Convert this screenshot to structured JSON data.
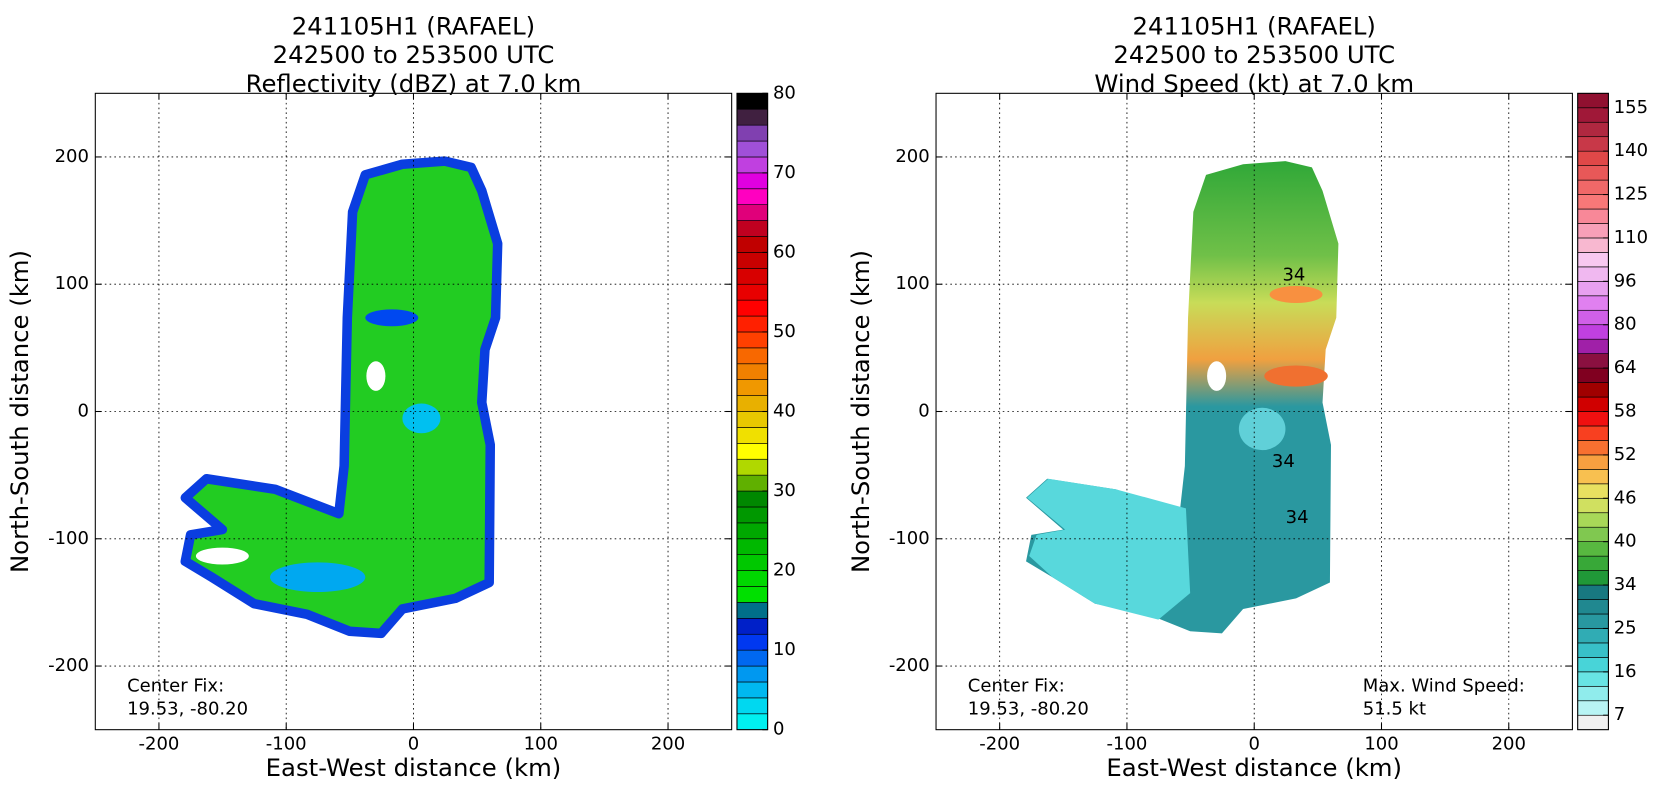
{
  "chart_data": [
    {
      "type": "field",
      "title": [
        "241105H1 (RAFAEL)",
        "242500 to 253500 UTC",
        "Reflectivity (dBZ) at 7.0 km"
      ],
      "xlabel": "East-West distance (km)",
      "ylabel": "North-South distance (km)",
      "xlim": [
        -250,
        250
      ],
      "ylim": [
        -250,
        250
      ],
      "xticks": [
        -200,
        -100,
        0,
        100,
        200
      ],
      "yticks": [
        -200,
        -100,
        0,
        100,
        200
      ],
      "grid": true,
      "colorbar": {
        "levels": [
          0,
          2,
          4,
          6,
          8,
          10,
          12,
          14,
          16,
          18,
          20,
          22,
          24,
          26,
          28,
          30,
          32,
          34,
          36,
          38,
          40,
          42,
          44,
          46,
          48,
          50,
          52,
          54,
          56,
          58,
          60,
          62,
          64,
          66,
          68,
          70,
          72,
          74,
          76,
          78,
          80
        ],
        "ticks": [
          0,
          10,
          20,
          30,
          40,
          50,
          60,
          70,
          80
        ],
        "colors": [
          "#00f0f0",
          "#00d8f0",
          "#00b8f0",
          "#0098f0",
          "#0068f0",
          "#0038f0",
          "#0020c8",
          "#00708a",
          "#00e000",
          "#00d800",
          "#00c800",
          "#00b800",
          "#00a800",
          "#009800",
          "#008800",
          "#60b000",
          "#b0d800",
          "#ffff00",
          "#f0e000",
          "#e8c800",
          "#e8b000",
          "#f09800",
          "#f08000",
          "#f86800",
          "#ff4000",
          "#ff2000",
          "#ff0000",
          "#e80000",
          "#d80000",
          "#c80000",
          "#c00000",
          "#c00020",
          "#e0007a",
          "#ff00c0",
          "#e000e0",
          "#c040e0",
          "#a050d8",
          "#8040b0",
          "#402040",
          "#000000"
        ]
      },
      "annotations": [
        "Center Fix:",
        "19.53, -80.20"
      ]
    },
    {
      "type": "field",
      "title": [
        "241105H1 (RAFAEL)",
        "242500 to 253500 UTC",
        "Wind Speed (kt) at 7.0 km"
      ],
      "xlabel": "East-West distance (km)",
      "ylabel": "North-South distance (km)",
      "xlim": [
        -250,
        250
      ],
      "ylim": [
        -250,
        250
      ],
      "xticks": [
        -200,
        -100,
        0,
        100,
        200
      ],
      "yticks": [
        -200,
        -100,
        0,
        100,
        200
      ],
      "grid": true,
      "colorbar": {
        "levels": [
          4,
          7,
          10,
          13,
          16,
          19,
          22,
          25,
          28,
          31,
          34,
          36,
          38,
          40,
          42,
          44,
          46,
          48,
          50,
          52,
          54,
          56,
          58,
          60,
          62,
          64,
          69,
          75,
          80,
          85,
          91,
          96,
          101,
          105,
          110,
          115,
          120,
          125,
          130,
          135,
          140,
          145,
          150,
          155,
          160
        ],
        "ticks": [
          7,
          16,
          25,
          34,
          40,
          46,
          52,
          58,
          64,
          80,
          96,
          110,
          125,
          140,
          155
        ],
        "colors": [
          "#f0f0f0",
          "#b8f4f4",
          "#90ecec",
          "#68e4e4",
          "#48d4d8",
          "#38c0c8",
          "#30acb4",
          "#2898a0",
          "#208890",
          "#187880",
          "#209838",
          "#38a838",
          "#58b840",
          "#80c850",
          "#a8d858",
          "#d0e060",
          "#e8e060",
          "#f8c050",
          "#f8a040",
          "#f87030",
          "#f84020",
          "#f01010",
          "#d00000",
          "#a00000",
          "#800020",
          "#8a1040",
          "#a020a8",
          "#c040e0",
          "#d060e8",
          "#e080f0",
          "#e8a0f0",
          "#f0b8f0",
          "#f8c8f0",
          "#f8b8d0",
          "#f8a0b8",
          "#f88898",
          "#f87878",
          "#f06868",
          "#e85858",
          "#e04848",
          "#c83848",
          "#b02840",
          "#a01838",
          "#901030"
        ]
      },
      "annotations": [
        "Center Fix:",
        "19.53, -80.20",
        "Max. Wind Speed:",
        "51.5 kt"
      ],
      "contour_labels": [
        "34",
        "34",
        "34"
      ]
    }
  ]
}
